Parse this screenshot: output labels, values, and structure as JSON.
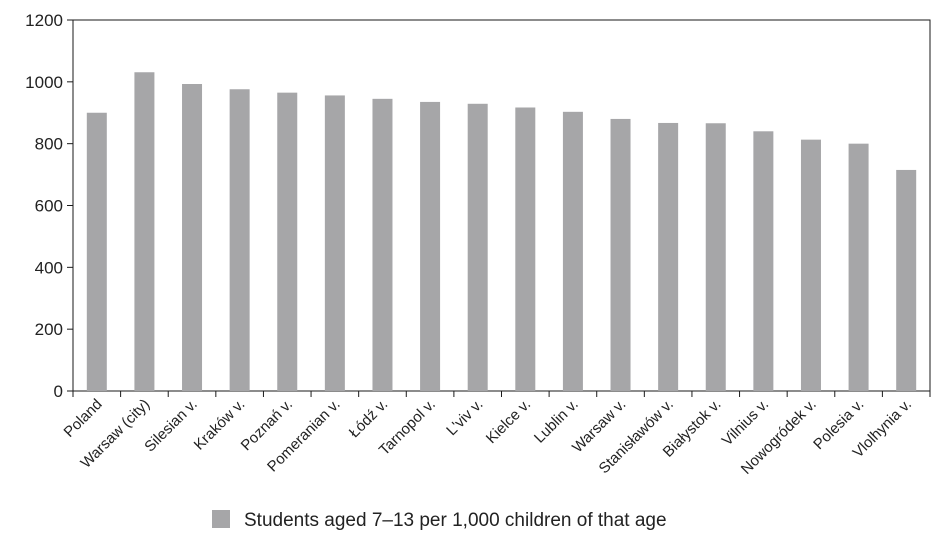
{
  "chart_data": {
    "type": "bar",
    "categories": [
      "Poland",
      "Warsaw (city)",
      "Silesian v.",
      "Kraków v.",
      "Poznań v.",
      "Pomeranian v.",
      "Łódź v.",
      "Tarnopol v.",
      "L'viv v.",
      "Kielce v.",
      "Lublin v.",
      "Warsaw v.",
      "Stanisławów v.",
      "Białystok v.",
      "Vilnius v.",
      "Nowogródek v.",
      "Polesia v.",
      "Vlolhynia v."
    ],
    "series": [
      {
        "name": "Students aged 7–13 per 1,000 children of that age",
        "values": [
          900,
          1031,
          993,
          976,
          965,
          956,
          945,
          935,
          929,
          917,
          903,
          880,
          867,
          866,
          840,
          813,
          800,
          715
        ]
      }
    ],
    "yticks": [
      0,
      200,
      400,
      600,
      800,
      1000,
      1200
    ],
    "ylim": [
      0,
      1200
    ],
    "grid": false,
    "legend_position": "bottom",
    "colors": {
      "bar": "#a6a6a8",
      "axis": "#1a1a1a"
    }
  }
}
